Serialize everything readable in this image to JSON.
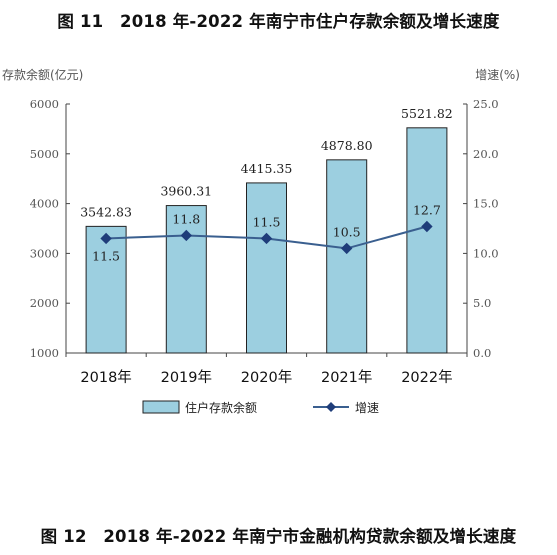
{
  "figure11": {
    "title": "图 11　2018 年-2022 年南宁市住户存款余额及增长速度"
  },
  "figure12": {
    "title": "图 12　2018 年-2022 年南宁市金融机构贷款余额及增长速度"
  },
  "chart_data": {
    "type": "bar",
    "categories": [
      "2018年",
      "2019年",
      "2020年",
      "2021年",
      "2022年"
    ],
    "series": [
      {
        "name": "住户存款余额",
        "type": "bar",
        "axis": "left",
        "values": [
          3542.83,
          3960.31,
          4415.35,
          4878.8,
          5521.82
        ],
        "labels": [
          "3542.83",
          "3960.31",
          "4415.35",
          "4878.80",
          "5521.82"
        ]
      },
      {
        "name": "增速",
        "type": "line",
        "axis": "right",
        "values": [
          11.5,
          11.8,
          11.5,
          10.5,
          12.7
        ],
        "labels": [
          "11.5",
          "11.8",
          "11.5",
          "10.5",
          "12.7"
        ]
      }
    ],
    "ylabel": "存款余额(亿元)",
    "ylabel_right": "增速(%)",
    "ylim": [
      1000,
      6000
    ],
    "ylim_right": [
      0,
      25
    ],
    "yticks": [
      "1000",
      "2000",
      "3000",
      "4000",
      "5000",
      "6000"
    ],
    "yticks_right": [
      "0.0",
      "5.0",
      "10.0",
      "15.0",
      "20.0",
      "25.0"
    ],
    "grid": false,
    "legend_position": "bottom",
    "colors": {
      "bar": "#9ccfe0",
      "bar_edge": "#222222",
      "line": "#3a5f8f",
      "marker": "#1f3d7a"
    }
  }
}
